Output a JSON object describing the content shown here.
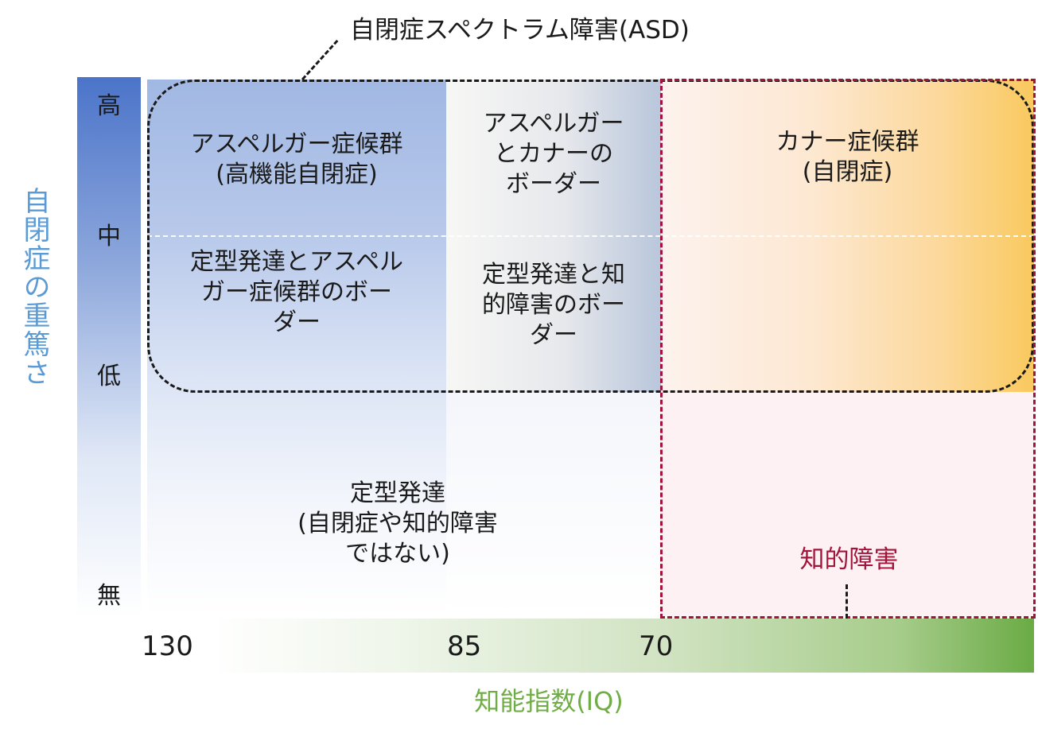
{
  "asd_title": "自閉症スペクトラム障害(ASD)",
  "severity_axis": {
    "title": "自閉症の重篤さ",
    "levels": [
      "高",
      "中",
      "低",
      "無"
    ]
  },
  "cells": {
    "asperger": "アスペルガー症候群\n(高機能自閉症)",
    "asperger_kanner_border": "アスペルガー\nとカナーの\nボーダー",
    "kanner": "カナー症候群\n(自閉症)",
    "typical_asperger_border": "定型発達とアスペル\nガー症候群のボー\nダー",
    "typical_id_border": "定型発達と知\n的障害のボー\nダー",
    "typical": "定型発達\n(自閉症や知的障害\nではない)"
  },
  "intellectual_disability_label": "知的障害",
  "iq_axis": {
    "title": "知能指数(IQ)",
    "ticks": [
      "130",
      "85",
      "70"
    ]
  },
  "colors": {
    "severity_bar": "#4b74c9",
    "severity_title": "#5b9bd5",
    "asperger_region": "#a1b8e3",
    "kanner_region": "#f9c95e",
    "intellectual_disability": "#a3143b",
    "intellectual_disability_fill": "#fdf1f3",
    "iq_bar": "#6aab45",
    "iq_title": "#70ad47"
  }
}
